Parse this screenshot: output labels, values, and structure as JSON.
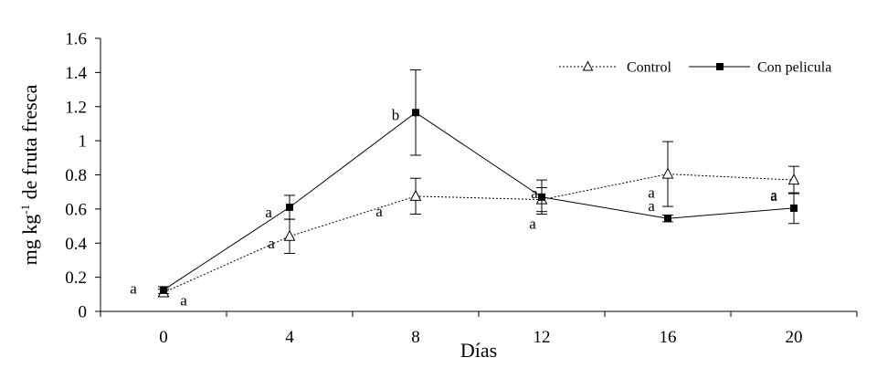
{
  "chart_data": {
    "type": "line",
    "xlabel": "Días",
    "ylabel_main": "mg kg",
    "ylabel_sup": "-1",
    "ylabel_rest": " de fruta fresca",
    "x_ticks": [
      "0",
      "4",
      "8",
      "12",
      "16",
      "20"
    ],
    "y_ticks": [
      "0",
      "0.2",
      "0.4",
      "0.6",
      "0.8",
      "1",
      "1.2",
      "1.4",
      "1.6"
    ],
    "ylim": [
      0,
      1.6
    ],
    "xlim": [
      -2,
      22
    ],
    "legend_position": "top-right",
    "series": [
      {
        "name": "Control",
        "marker": "open-triangle",
        "line_style": "dotted",
        "x": [
          0,
          4,
          8,
          12,
          16,
          20
        ],
        "y": [
          0.11,
          0.44,
          0.675,
          0.655,
          0.805,
          0.77
        ],
        "error": [
          0.02,
          0.1,
          0.105,
          0.07,
          0.19,
          0.08
        ],
        "letters": [
          "a",
          "a",
          "a",
          "a",
          "a",
          "a"
        ]
      },
      {
        "name": "Con pelicula",
        "marker": "filled-square",
        "line_style": "solid",
        "x": [
          0,
          4,
          8,
          12,
          16,
          20
        ],
        "y": [
          0.125,
          0.61,
          1.165,
          0.67,
          0.545,
          0.605
        ],
        "error": [
          0.02,
          0.07,
          0.25,
          0.1,
          0.02,
          0.09
        ],
        "letters": [
          "a",
          "a",
          "b",
          "a",
          "a",
          "a"
        ]
      }
    ]
  }
}
